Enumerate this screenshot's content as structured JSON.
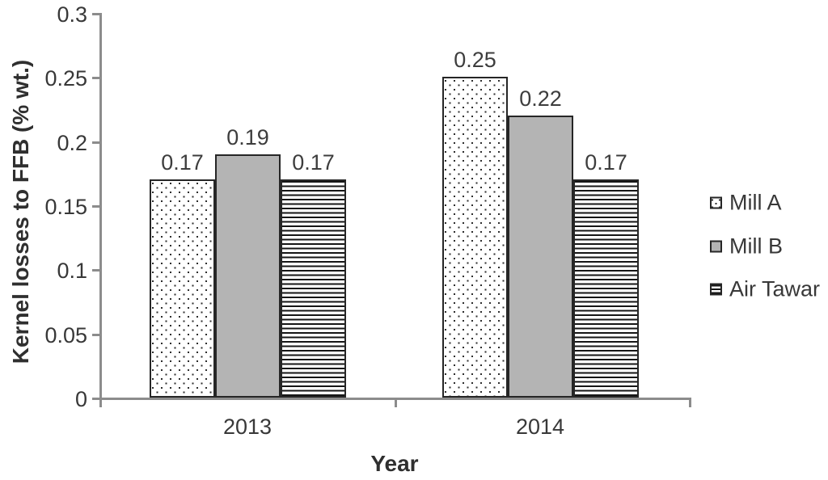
{
  "chart_data": {
    "type": "bar",
    "title": "",
    "xlabel": "Year",
    "ylabel": "Kernel losses to FFB (% wt.)",
    "categories": [
      "2013",
      "2014"
    ],
    "series": [
      {
        "name": "Mill A",
        "pattern": "dots",
        "values": [
          0.17,
          0.25
        ]
      },
      {
        "name": "Mill B",
        "pattern": "solid-gray",
        "values": [
          0.19,
          0.22
        ]
      },
      {
        "name": "Air Tawar",
        "pattern": "horizontal-lines",
        "values": [
          0.17,
          0.17
        ]
      }
    ],
    "data_labels": [
      [
        "0.17",
        "0.19",
        "0.17"
      ],
      [
        "0.25",
        "0.22",
        "0.17"
      ]
    ],
    "ylim": [
      0,
      0.3
    ],
    "ytick_step": 0.05,
    "ytick_labels": [
      "0",
      "0.05",
      "0.1",
      "0.15",
      "0.2",
      "0.25",
      "0.3"
    ],
    "legend_position": "right",
    "grid": false
  },
  "colors": {
    "axis": "#8c8c8c",
    "bar_border": "#262626",
    "solid_fill": "#b4b4b4",
    "pattern_ink": "#161616",
    "text": "#383838"
  }
}
